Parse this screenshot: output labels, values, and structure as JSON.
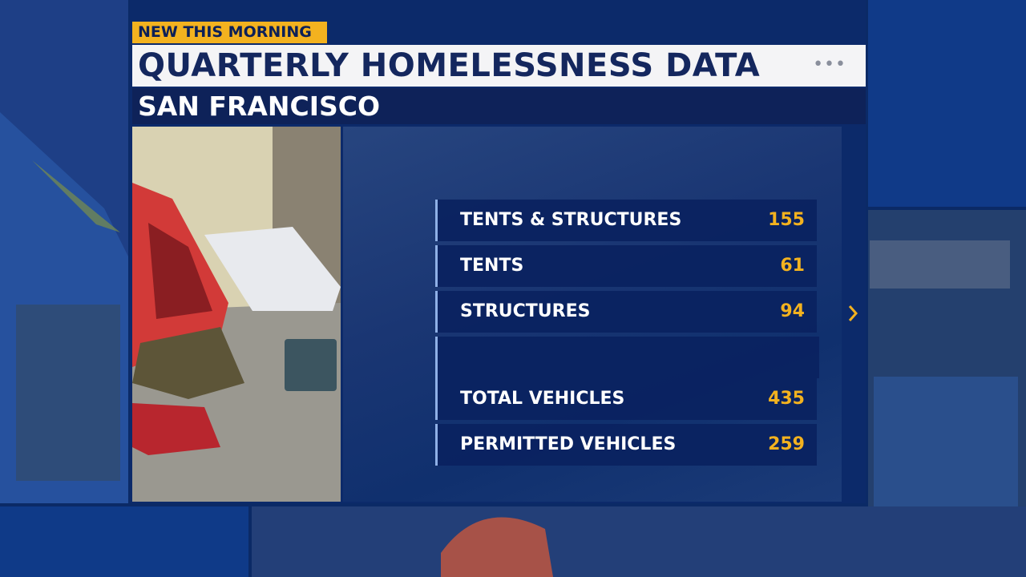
{
  "tag": "NEW THIS MORNING",
  "title": "QUARTERLY HOMELESSNESS DATA",
  "subtitle": "SAN FRANCISCO",
  "rows": [
    {
      "label": "TENTS & STRUCTURES",
      "value": 155
    },
    {
      "label": "TENTS",
      "value": 61
    },
    {
      "label": "STRUCTURES",
      "value": 94
    },
    {
      "label": "TOTAL VEHICLES",
      "value": 435
    },
    {
      "label": "PERMITTED VEHICLES",
      "value": 259
    }
  ]
}
